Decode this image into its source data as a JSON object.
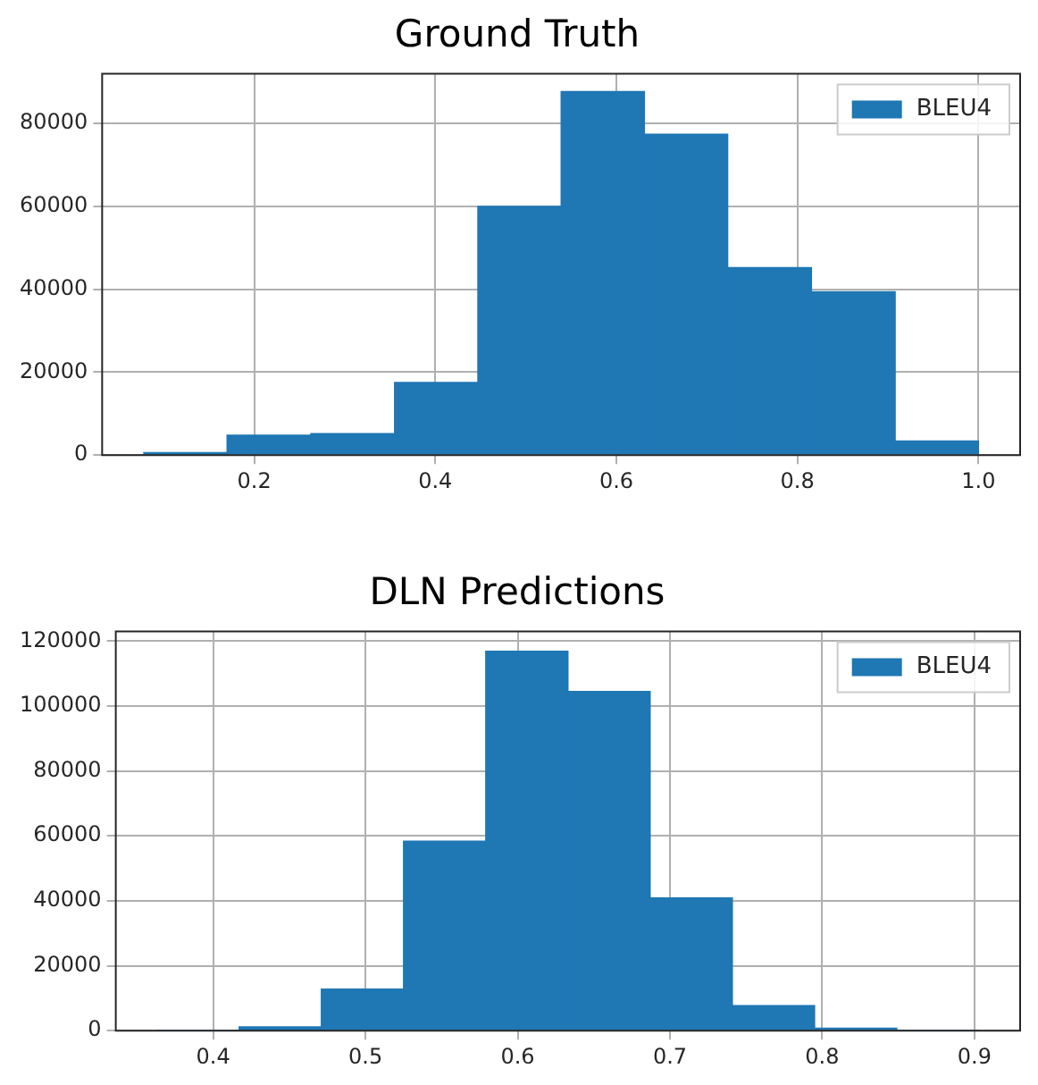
{
  "chart_data": [
    {
      "type": "histogram",
      "title": "Ground Truth",
      "bins": [
        0.078,
        0.17,
        0.262,
        0.355,
        0.447,
        0.539,
        0.631,
        0.723,
        0.816,
        0.908,
        1.0
      ],
      "series": [
        {
          "name": "BLEU4",
          "color": "#1f77b4",
          "values": [
            600,
            4800,
            5200,
            17500,
            60000,
            87700,
            77400,
            45200,
            39400,
            3400
          ]
        }
      ],
      "xlim": [
        0.032,
        1.046
      ],
      "xticks": [
        {
          "value": 0.2,
          "label": "0.2"
        },
        {
          "value": 0.4,
          "label": "0.4"
        },
        {
          "value": 0.6,
          "label": "0.6"
        },
        {
          "value": 0.8,
          "label": "0.8"
        },
        {
          "value": 1.0,
          "label": "1.0"
        }
      ],
      "ylim": [
        0,
        92000
      ],
      "yticks": [
        0,
        20000,
        40000,
        60000,
        80000
      ],
      "grid": true,
      "legend": "top right"
    },
    {
      "type": "histogram",
      "title": "DLN Predictions",
      "bins": [
        0.363,
        0.417,
        0.471,
        0.525,
        0.579,
        0.633,
        0.687,
        0.741,
        0.795,
        0.849,
        0.903
      ],
      "series": [
        {
          "name": "BLEU4",
          "color": "#1f77b4",
          "values": [
            0,
            1200,
            12800,
            58400,
            116900,
            104500,
            40900,
            7700,
            800,
            0
          ]
        }
      ],
      "xlim": [
        0.336,
        0.93
      ],
      "xticks": [
        0.4,
        0.5,
        0.6,
        0.7,
        0.8,
        0.9
      ],
      "ylim": [
        0,
        123000
      ],
      "yticks": [
        0,
        20000,
        40000,
        60000,
        80000,
        100000,
        120000
      ],
      "grid": true,
      "legend": "top right"
    }
  ]
}
